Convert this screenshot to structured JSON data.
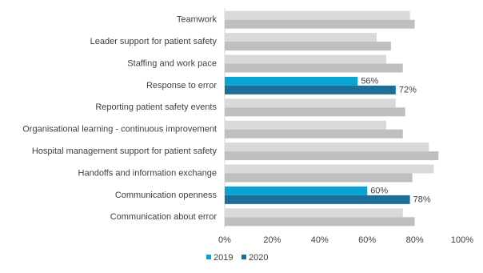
{
  "chart_data": {
    "type": "hbar",
    "categories": [
      "Teamwork",
      "Leader support for patient safety",
      "Staffing and work pace",
      "Response to error",
      "Reporting patient safety events",
      "Organisational learning - continuous improvement",
      "Hospital management support for patient safety",
      "Handoffs and information exchange",
      "Communication openness",
      "Communication about error"
    ],
    "series": [
      {
        "name": "2019",
        "color": "#0aa4d4",
        "colors": [
          "#d9d9d9",
          "#d9d9d9",
          "#d9d9d9",
          "#0aa4d4",
          "#d9d9d9",
          "#d9d9d9",
          "#d9d9d9",
          "#d9d9d9",
          "#0aa4d4",
          "#d9d9d9"
        ],
        "values": [
          78,
          64,
          68,
          56,
          72,
          68,
          86,
          88,
          60,
          75
        ],
        "value_labels": [
          null,
          null,
          null,
          "56%",
          null,
          null,
          null,
          null,
          "60%",
          null
        ]
      },
      {
        "name": "2020",
        "color": "#1d6f98",
        "colors": [
          "#bfbfbf",
          "#bfbfbf",
          "#bfbfbf",
          "#1d6f98",
          "#bfbfbf",
          "#bfbfbf",
          "#bfbfbf",
          "#bfbfbf",
          "#1d6f98",
          "#bfbfbf"
        ],
        "values": [
          80,
          70,
          75,
          72,
          76,
          75,
          90,
          79,
          78,
          80
        ],
        "value_labels": [
          null,
          null,
          null,
          "72%",
          null,
          null,
          null,
          null,
          "78%",
          null
        ]
      }
    ],
    "xlim": [
      0,
      100
    ],
    "xticks": [
      {
        "value": 0,
        "label": "0%"
      },
      {
        "value": 20,
        "label": "20%"
      },
      {
        "value": 40,
        "label": "40%"
      },
      {
        "value": 60,
        "label": "60%"
      },
      {
        "value": 80,
        "label": "80%"
      },
      {
        "value": 100,
        "label": "100%"
      }
    ],
    "grid": false,
    "legend": "bottom"
  }
}
